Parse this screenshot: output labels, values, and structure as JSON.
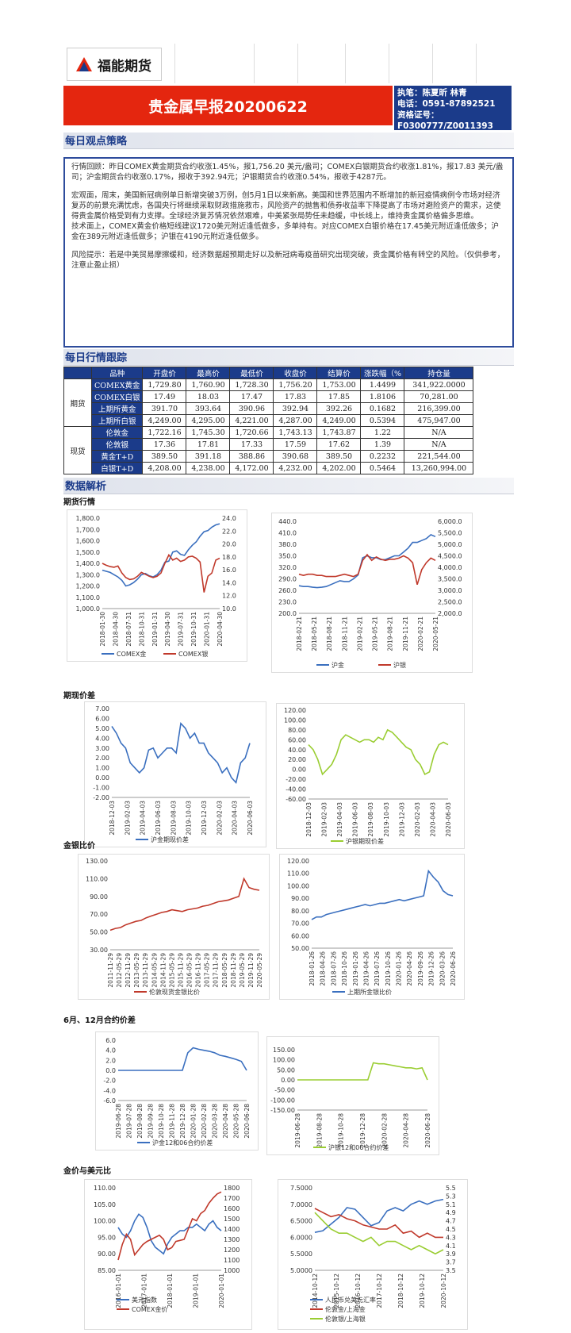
{
  "header": {
    "company": "福能期货",
    "title": "贵金属早报20200622",
    "analyst": "执笔：陈夏昕 林青",
    "phone": "电话：0591-87892521",
    "cert_label": "资格证号：",
    "cert_no": "F0300777/Z0011393"
  },
  "sections": {
    "strategy": "每日观点策略",
    "tracking": "每日行情跟踪",
    "analysis": "数据解析"
  },
  "strategy_text": {
    "p1": "行情回顾：昨日COMEX黄金期货合约收涨1.45%，报1,756.20 美元/盎司；COMEX白银期货合约收涨1.81%，报17.83 美元/盎司；沪金期货合约收涨0.17%，报收于392.94元；沪银期货合约收涨0.54%，报收于4287元。",
    "p2": "宏观面，周末，美国新冠病例单日新增突破3万例，创5月1日以来新高。美国和世界范围内不断增加的新冠疫情病例令市场对经济复苏的前景充满忧虑，各国央行将继续采取财政措施救市，风险资产的抛售和债券收益率下降提高了市场对避险资产的需求，这使得贵金属价格受到有力支撑。全球经济复苏情况依然艰难，中美紧张局势任未趋缓，中长线上，维持贵金属价格偏多思维。",
    "p3": "技术面上，COMEX黄金价格短线建议1720美元附近逢低做多，多单持有。对应COMEX白银价格在17.45美元附近逢低做多；沪金在389元附近逢低做多；沪银在4190元附近逢低做多。",
    "p4": "风险提示：若是中美贸易摩擦缓和，经济数据超预期走好以及新冠病毒疫苗研究出现突破，贵金属价格有转空的风险。（仅供参考，注意止盈止损）"
  },
  "table": {
    "headers": [
      "品种",
      "开盘价",
      "最高价",
      "最低价",
      "收盘价",
      "结算价",
      "涨跌幅（%",
      "持仓量"
    ],
    "groups": [
      "期货",
      "现货"
    ],
    "rows": [
      [
        "COMEX黄金",
        "1,729.80",
        "1,760.90",
        "1,728.30",
        "1,756.20",
        "1,753.00",
        "1.4499",
        "341,922.0000"
      ],
      [
        "COMEX白银",
        "17.49",
        "18.03",
        "17.47",
        "17.83",
        "17.85",
        "1.8106",
        "70,281.00"
      ],
      [
        "上期所黄金",
        "391.70",
        "393.64",
        "390.96",
        "392.94",
        "392.26",
        "0.1682",
        "216,399.00"
      ],
      [
        "上期所白银",
        "4,249.00",
        "4,295.00",
        "4,221.00",
        "4,287.00",
        "4,249.00",
        "0.5394",
        "475,947.00"
      ],
      [
        "伦敦金",
        "1,722.16",
        "1,745.30",
        "1,720.66",
        "1,743.13",
        "1,743.87",
        "1.22",
        "N/A"
      ],
      [
        "伦敦银",
        "17.36",
        "17.81",
        "17.33",
        "17.59",
        "17.62",
        "1.39",
        "N/A"
      ],
      [
        "黄金T+D",
        "389.50",
        "391.18",
        "388.86",
        "390.68",
        "389.50",
        "0.2232",
        "221,544.00"
      ],
      [
        "白银T+D",
        "4,208.00",
        "4,238.00",
        "4,172.00",
        "4,232.00",
        "4,202.00",
        "0.5464",
        "13,260,994.00"
      ]
    ]
  },
  "subtitles": {
    "futures": "期货行情",
    "basis": "期现价差",
    "ratio": "金银比价",
    "spread": "6月、12月合约价差",
    "usd": "金价与美元比"
  },
  "colors": {
    "blue": "#3a6fbf",
    "red": "#c0392b",
    "green": "#9acd32"
  },
  "chart_data": [
    {
      "type": "line",
      "id": "c1",
      "x_ticks": [
        "2018-01-30",
        "2018-04-30",
        "2018-07-31",
        "2018-10-31",
        "2019-01-31",
        "2019-04-30",
        "2019-07-31",
        "2019-10-31",
        "2020-01-31",
        "2020-04-30"
      ],
      "y_left_ticks": [
        "1,800.0",
        "1,700.0",
        "1,600.0",
        "1,500.0",
        "1,400.0",
        "1,300.0",
        "1,200.0",
        "1,100.0",
        "1,000.0"
      ],
      "y_right_ticks": [
        "24.0",
        "22.0",
        "20.0",
        "18.0",
        "16.0",
        "14.0",
        "12.0",
        "10.0"
      ],
      "ylim_left": [
        1000,
        1800
      ],
      "ylim_right": [
        10,
        24
      ],
      "series": [
        {
          "name": "COMEX金",
          "color": "blue",
          "axis": "left",
          "values": [
            1340,
            1330,
            1320,
            1300,
            1280,
            1250,
            1200,
            1210,
            1230,
            1260,
            1300,
            1310,
            1290,
            1280,
            1300,
            1340,
            1410,
            1420,
            1500,
            1510,
            1480,
            1470,
            1520,
            1560,
            1590,
            1640,
            1680,
            1690,
            1720,
            1740,
            1750
          ]
        },
        {
          "name": "COMEX银",
          "color": "red",
          "axis": "left2",
          "values": [
            17,
            16.7,
            16.5,
            16.4,
            16.6,
            15.5,
            14.8,
            14.5,
            14.6,
            15,
            15.6,
            15.3,
            15,
            14.8,
            15,
            15.5,
            17,
            18.3,
            17.5,
            17.8,
            17.3,
            17.5,
            18,
            18.1,
            17.8,
            17.2,
            12.5,
            15,
            15.5,
            17.5,
            17.8
          ]
        }
      ]
    },
    {
      "type": "line",
      "id": "c2",
      "x_ticks": [
        "2018-02-21",
        "2018-05-21",
        "2018-08-21",
        "2018-11-21",
        "2019-02-21",
        "2019-05-21",
        "2019-08-21",
        "2019-11-21",
        "2020-02-21",
        "2020-05-21"
      ],
      "y_left_ticks": [
        "440.0",
        "410.0",
        "380.0",
        "350.0",
        "320.0",
        "290.0",
        "260.0",
        "230.0",
        "200.0"
      ],
      "y_right_ticks": [
        "6,000.0",
        "5,500.0",
        "5,000.0",
        "4,500.0",
        "4,000.0",
        "3,500.0",
        "3,000.0",
        "2,500.0",
        "2,000.0"
      ],
      "ylim_left": [
        200,
        440
      ],
      "ylim_right": [
        2000,
        6000
      ],
      "series": [
        {
          "name": "沪金",
          "color": "blue",
          "axis": "left",
          "values": [
            272,
            270,
            270,
            268,
            267,
            268,
            270,
            275,
            280,
            285,
            283,
            283,
            290,
            300,
            345,
            350,
            345,
            345,
            340,
            340,
            345,
            350,
            350,
            360,
            370,
            385,
            385,
            390,
            395,
            405,
            400
          ]
        },
        {
          "name": "沪银",
          "color": "red",
          "axis": "right",
          "values": [
            3700,
            3650,
            3700,
            3700,
            3650,
            3650,
            3600,
            3600,
            3600,
            3650,
            3700,
            3650,
            3600,
            3700,
            4300,
            4550,
            4300,
            4450,
            4350,
            4300,
            4350,
            4350,
            4400,
            4500,
            4400,
            4200,
            3250,
            3900,
            4200,
            4400,
            4300
          ]
        }
      ]
    },
    {
      "type": "line",
      "id": "c3",
      "x_ticks": [
        "2018-12-03",
        "2019-02-03",
        "2019-04-03",
        "2019-06-03",
        "2019-08-03",
        "2019-10-03",
        "2019-12-03",
        "2020-02-03",
        "2020-04-03",
        "2020-06-03"
      ],
      "y_ticks": [
        "7.00",
        "6.00",
        "5.00",
        "4.00",
        "3.00",
        "2.00",
        "1.00",
        "0.00",
        "-1.00",
        "-2.00"
      ],
      "ylim": [
        -2,
        7
      ],
      "series": [
        {
          "name": "沪金期现价差",
          "color": "blue",
          "values": [
            5.2,
            4.5,
            3.5,
            3,
            1.5,
            1,
            0.5,
            1,
            2.8,
            3,
            2,
            2.5,
            3,
            3,
            2.5,
            5.5,
            5,
            4,
            4.5,
            3.5,
            3.5,
            2.5,
            2,
            1.5,
            0.5,
            1,
            0,
            -0.5,
            1.5,
            2,
            3.5
          ]
        }
      ]
    },
    {
      "type": "line",
      "id": "c4",
      "x_ticks": [
        "2018-12-03",
        "2019-02-03",
        "2019-04-03",
        "2019-06-03",
        "2019-08-03",
        "2019-10-03",
        "2019-12-03",
        "2020-02-03",
        "2020-04-03",
        "2020-06-03"
      ],
      "y_ticks": [
        "120.00",
        "100.00",
        "80.00",
        "60.00",
        "40.00",
        "20.00",
        "0.00",
        "-20.00",
        "-40.00",
        "-60.00"
      ],
      "ylim": [
        -60,
        120
      ],
      "series": [
        {
          "name": "沪银期现价差",
          "color": "green",
          "values": [
            50,
            40,
            20,
            -10,
            0,
            10,
            30,
            60,
            70,
            65,
            60,
            55,
            60,
            60,
            55,
            65,
            60,
            80,
            75,
            65,
            55,
            45,
            40,
            20,
            10,
            -10,
            -5,
            30,
            50,
            55,
            50
          ]
        }
      ]
    },
    {
      "type": "line",
      "id": "c5",
      "x_ticks": [
        "2011-11-29",
        "2012-05-29",
        "2012-11-29",
        "2013-05-29",
        "2013-11-29",
        "2014-05-29",
        "2014-11-29",
        "2015-05-29",
        "2015-11-29",
        "2016-05-29",
        "2016-11-29",
        "2017-05-29",
        "2017-11-29",
        "2018-05-29",
        "2018-11-29",
        "2019-05-29",
        "2019-11-29",
        "2020-05-29"
      ],
      "y_ticks": [
        "130.00",
        "110.00",
        "90.00",
        "70.00",
        "50.00",
        "30.00"
      ],
      "ylim": [
        30,
        130
      ],
      "series": [
        {
          "name": "伦敦现货金银比价",
          "color": "red",
          "values": [
            52,
            54,
            55,
            58,
            60,
            62,
            63,
            66,
            68,
            70,
            72,
            73,
            75,
            74,
            73,
            75,
            76,
            77,
            79,
            80,
            82,
            84,
            85,
            86,
            88,
            90,
            110,
            100,
            98,
            97
          ]
        }
      ]
    },
    {
      "type": "line",
      "id": "c6",
      "x_ticks": [
        "2018-01-26",
        "2018-04-26",
        "2018-07-26",
        "2018-10-26",
        "2019-01-26",
        "2019-04-26",
        "2019-07-26",
        "2019-10-26",
        "2020-01-26",
        "2020-04-26",
        "2019-09-26",
        "2019-12-26",
        "2020-03-26",
        "2020-06-26"
      ],
      "y_ticks": [
        "120.00",
        "110.00",
        "100.00",
        "90.00",
        "80.00",
        "70.00",
        "60.00",
        "50.00"
      ],
      "ylim": [
        50,
        120
      ],
      "series": [
        {
          "name": "上期所金银比价",
          "color": "blue",
          "values": [
            73,
            75,
            75,
            77,
            78,
            79,
            80,
            81,
            82,
            83,
            84,
            85,
            84,
            85,
            86,
            86,
            87,
            88,
            89,
            88,
            89,
            90,
            91,
            92,
            112,
            107,
            103,
            96,
            93,
            92
          ]
        }
      ]
    },
    {
      "type": "line",
      "id": "c7",
      "x_ticks": [
        "2019-06-28",
        "2019-07-28",
        "2019-08-28",
        "2019-09-28",
        "2019-10-28",
        "2019-11-28",
        "2019-12-28",
        "2020-01-28",
        "2020-02-28",
        "2020-03-28",
        "2020-04-28",
        "2020-05-28",
        "2020-06-28"
      ],
      "y_ticks": [
        "6.0",
        "4.0",
        "2.0",
        "0.0",
        "-2.0",
        "-4.0",
        "-6.0"
      ],
      "ylim": [
        -6,
        6
      ],
      "series": [
        {
          "name": "沪金12和06合约价差",
          "color": "blue",
          "values": [
            0,
            0,
            0,
            0,
            0,
            0,
            0,
            0,
            0,
            0,
            0,
            0,
            0,
            3.5,
            4.5,
            4.2,
            4,
            3.8,
            3.5,
            3,
            2.8,
            2.5,
            2.2,
            1.8,
            0
          ]
        }
      ]
    },
    {
      "type": "line",
      "id": "c8",
      "x_ticks": [
        "2019-06-28",
        "2019-08-28",
        "2019-10-28",
        "2019-12-28",
        "2020-02-28",
        "2020-04-28",
        "2020-06-28"
      ],
      "y_ticks": [
        "150.00",
        "100.00",
        "50.00",
        "0.00",
        "-50.00",
        "-100.00",
        "-150.00"
      ],
      "ylim": [
        -150,
        150
      ],
      "series": [
        {
          "name": "沪银12和06合约价差",
          "color": "green",
          "values": [
            0,
            0,
            0,
            0,
            0,
            0,
            0,
            0,
            0,
            0,
            0,
            0,
            0,
            0,
            85,
            80,
            80,
            75,
            70,
            65,
            60,
            60,
            55,
            60,
            0
          ]
        }
      ]
    },
    {
      "type": "line",
      "id": "c9",
      "x_ticks": [
        "2016-01-01",
        "2017-01-01",
        "2018-01-01",
        "2019-01-01",
        "2020-01-01"
      ],
      "y_left_ticks": [
        "110.00",
        "105.00",
        "100.00",
        "95.00",
        "90.00",
        "85.00"
      ],
      "y_right_ticks": [
        "1800",
        "1700",
        "1600",
        "1500",
        "1400",
        "1300",
        "1200",
        "1100",
        "1000"
      ],
      "ylim_left": [
        85,
        110
      ],
      "ylim_right": [
        1000,
        1800
      ],
      "series": [
        {
          "name": "美元指数",
          "color": "blue",
          "axis": "left",
          "values": [
            98,
            96,
            95,
            97,
            100,
            102,
            101,
            98,
            94,
            92,
            91,
            90,
            93,
            95,
            96,
            97,
            97,
            98,
            98,
            99,
            98,
            97,
            99,
            100,
            98,
            97
          ]
        },
        {
          "name": "COMEX金价",
          "color": "red",
          "axis": "right",
          "values": [
            1100,
            1250,
            1350,
            1300,
            1150,
            1200,
            1250,
            1280,
            1300,
            1320,
            1340,
            1300,
            1200,
            1220,
            1280,
            1290,
            1300,
            1400,
            1500,
            1480,
            1550,
            1580,
            1650,
            1700,
            1740,
            1760
          ]
        }
      ]
    },
    {
      "type": "line",
      "id": "c10",
      "x_ticks": [
        "2014-10-12",
        "2015-10-12",
        "2016-10-12",
        "2017-10-12",
        "2018-10-12",
        "2019-10-12",
        "2020-10-12"
      ],
      "y_left_ticks": [
        "7.5000",
        "7.0000",
        "6.5000",
        "6.0000",
        "5.5000",
        "5.0000"
      ],
      "y_right_ticks": [
        "5.5",
        "5.3",
        "5.1",
        "4.9",
        "4.7",
        "4.5",
        "4.3",
        "4.1",
        "3.9",
        "3.7",
        "3.5"
      ],
      "ylim_left": [
        5,
        7.5
      ],
      "ylim_right": [
        3.5,
        5.5
      ],
      "series": [
        {
          "name": "人民币兑美元汇率",
          "color": "blue",
          "axis": "left",
          "values": [
            6.15,
            6.2,
            6.4,
            6.6,
            6.9,
            6.85,
            6.6,
            6.35,
            6.45,
            6.8,
            6.9,
            6.8,
            7.0,
            7.1,
            7.0,
            7.1,
            7.15
          ]
        },
        {
          "name": "伦敦金/上海金",
          "color": "red",
          "axis": "right",
          "values": [
            5.0,
            4.9,
            4.8,
            4.85,
            4.75,
            4.7,
            4.6,
            4.55,
            4.5,
            4.5,
            4.6,
            4.4,
            4.45,
            4.3,
            4.4,
            4.3,
            4.3
          ]
        },
        {
          "name": "伦敦银/上海银",
          "color": "green",
          "axis": "right",
          "values": [
            4.9,
            4.7,
            4.5,
            4.4,
            4.4,
            4.3,
            4.2,
            4.3,
            4.1,
            4.2,
            4.2,
            4.1,
            4.0,
            4.1,
            4.0,
            3.9,
            4.0
          ]
        }
      ]
    }
  ]
}
